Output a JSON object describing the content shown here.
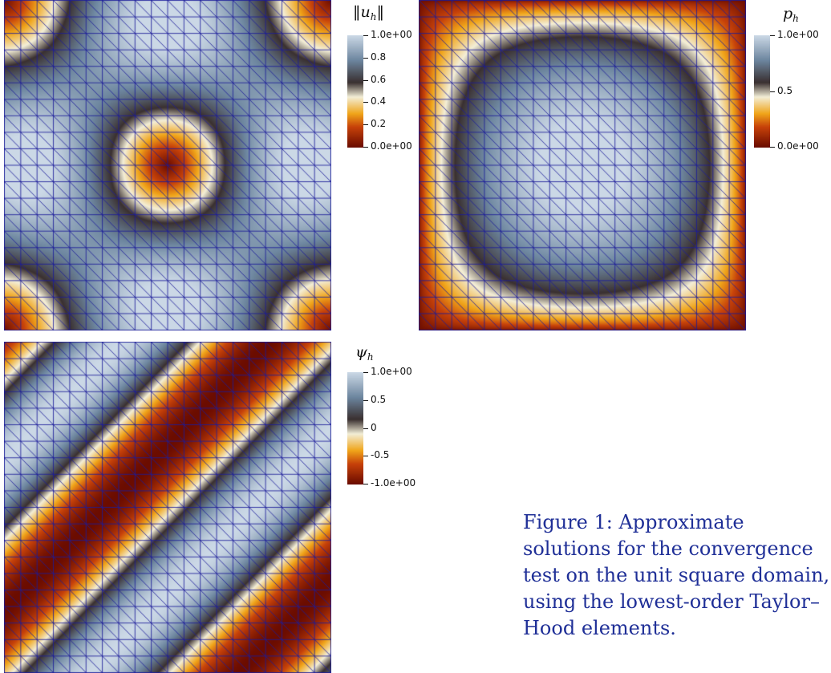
{
  "figure": {
    "caption_label": "Figure 1:",
    "caption_text": "Approximate solutions for the convergence test on the unit square domain, using the lowest-order Taylor–Hood elements."
  },
  "panels": [
    {
      "id": "uh",
      "field": "velocity_magnitude",
      "colorbar_title": "‖u",
      "colorbar_title_sub": "h",
      "colorbar_title_suffix": "‖",
      "colorbar_ticks": [
        "1.0e+00",
        "0.8",
        "0.6",
        "0.4",
        "0.2",
        "0.0e+00"
      ],
      "range": [
        0,
        1
      ]
    },
    {
      "id": "ph",
      "field": "pressure",
      "colorbar_title": "p",
      "colorbar_title_sub": "h",
      "colorbar_title_suffix": "",
      "colorbar_ticks": [
        "1.0e+00",
        "0.5",
        "0.0e+00"
      ],
      "range": [
        0,
        1
      ]
    },
    {
      "id": "psih",
      "field": "stream_function",
      "colorbar_title": "ψ",
      "colorbar_title_sub": "h",
      "colorbar_title_suffix": "",
      "colorbar_ticks": [
        "1.0e+00",
        "0.5",
        "0",
        "-0.5",
        "-1.0e+00"
      ],
      "range": [
        -1,
        1
      ]
    }
  ],
  "mesh": {
    "divisions": 20,
    "diagonal": "top-left-to-bottom-right",
    "edge_color": "#1c1c9a"
  },
  "colormap": {
    "name": "diverging-blue-black-orange",
    "stops": [
      "#6b0c00",
      "#c7420a",
      "#f0a51a",
      "#f3eed7",
      "#3a3030",
      "#6e87a0",
      "#cbd8e6"
    ]
  }
}
